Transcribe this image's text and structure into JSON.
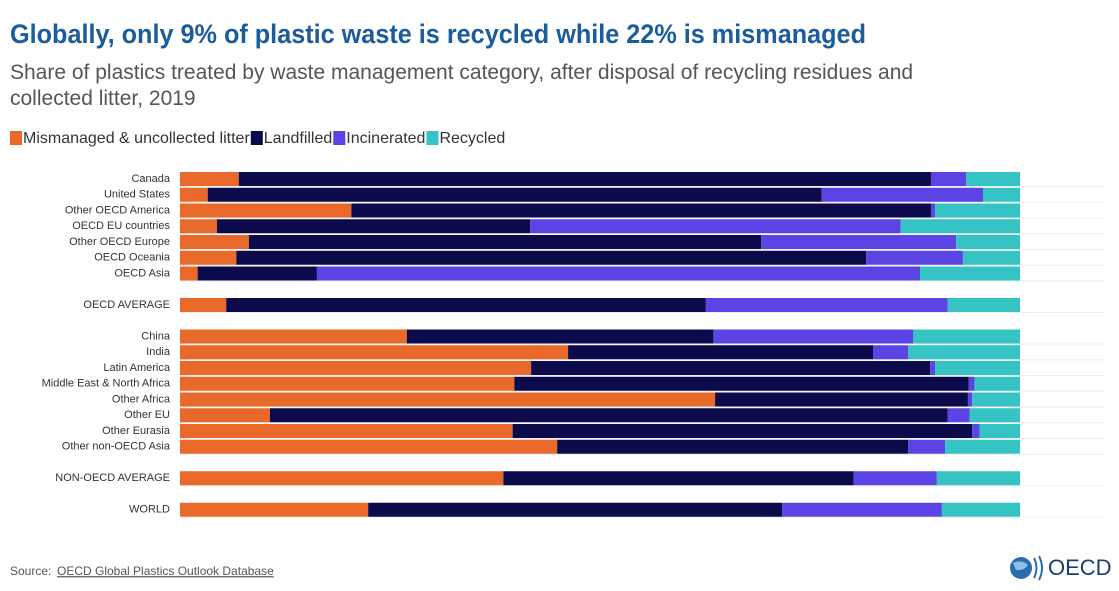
{
  "chart_data": {
    "type": "stacked-barh",
    "title": "Globally, only 9% of plastic waste is recycled while 22% is mismanaged",
    "subtitle": "Share of plastics treated by waste management category, after disposal of recycling residues and collected litter, 2019",
    "categories": [
      "Canada",
      "United States",
      "Other OECD America",
      "OECD EU countries",
      "Other OECD Europe",
      "OECD Oceania",
      "OECD Asia",
      "OECD AVERAGE",
      "China",
      "India",
      "Latin America",
      "Middle East & North Africa",
      "Other Africa",
      "Other EU",
      "Other Eurasia",
      "Other non-OECD Asia",
      "NON-OECD AVERAGE",
      "WORLD"
    ],
    "series": [
      {
        "name": "Mismanaged & uncollected litter",
        "color": "#e8692a",
        "values": [
          7.0,
          3.3,
          20.4,
          4.4,
          8.2,
          6.7,
          2.1,
          5.5,
          27.0,
          46.2,
          41.8,
          39.8,
          63.7,
          10.7,
          39.6,
          44.9,
          38.5,
          22.4
        ]
      },
      {
        "name": "Landfilled",
        "color": "#0b0b4b",
        "values": [
          82.4,
          73.1,
          69.0,
          37.3,
          61.0,
          75.0,
          14.2,
          57.1,
          36.5,
          36.3,
          47.5,
          54.1,
          30.1,
          80.7,
          54.7,
          41.8,
          41.7,
          49.3
        ]
      },
      {
        "name": "Incinerated",
        "color": "#5a44e4",
        "values": [
          4.2,
          19.2,
          0.5,
          44.1,
          23.2,
          11.5,
          71.8,
          28.8,
          23.8,
          4.2,
          0.6,
          0.7,
          0.5,
          2.6,
          0.9,
          4.4,
          9.9,
          19.0
        ]
      },
      {
        "name": "Recycled",
        "color": "#35c3c3",
        "values": [
          6.4,
          4.4,
          10.1,
          14.2,
          7.6,
          6.8,
          11.9,
          8.6,
          12.7,
          13.3,
          10.1,
          5.4,
          5.7,
          6.0,
          4.8,
          8.9,
          9.9,
          9.3
        ]
      }
    ],
    "xlim": [
      0,
      100
    ],
    "source_label": "Source:",
    "source": "OECD Global Plastics Outlook Database",
    "logo": "OECD"
  }
}
